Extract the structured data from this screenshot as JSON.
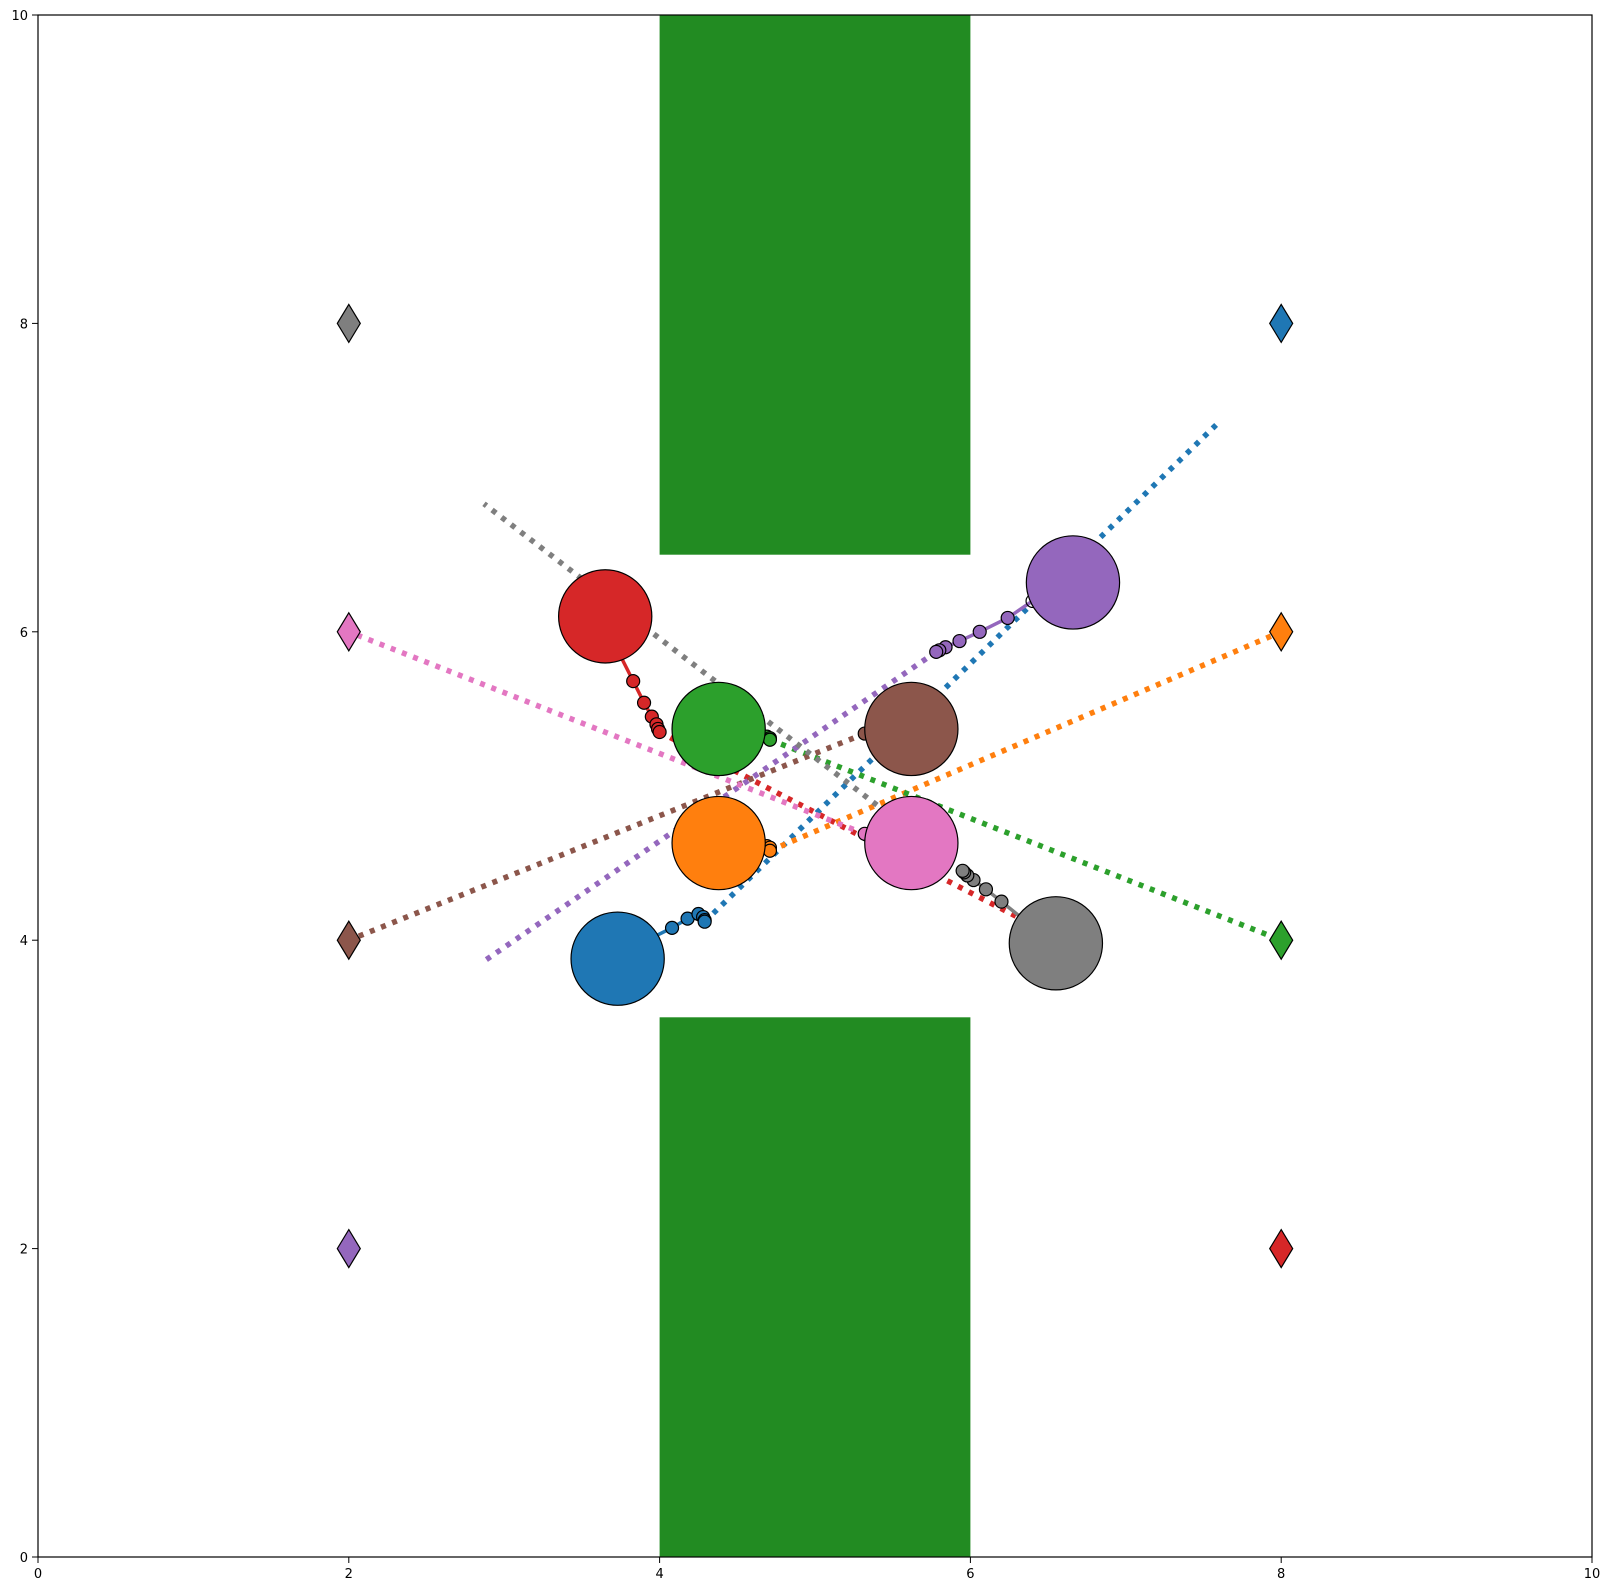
{
  "chart_data": {
    "type": "scatter",
    "title": "",
    "xlabel": "",
    "ylabel": "",
    "xlim": [
      0,
      10
    ],
    "ylim": [
      0,
      10
    ],
    "grid": false,
    "x_ticks": [
      0,
      2,
      4,
      6,
      8,
      10
    ],
    "y_ticks": [
      0,
      2,
      4,
      6,
      8,
      10
    ],
    "x_tick_labels": [
      "0",
      "2",
      "4",
      "6",
      "8",
      "10"
    ],
    "y_tick_labels": [
      "0",
      "2",
      "4",
      "6",
      "8",
      "10"
    ],
    "obstacles": [
      {
        "x0": 4.0,
        "x1": 6.0,
        "y0": 6.5,
        "y1": 10.0,
        "color": "#228b22"
      },
      {
        "x0": 4.0,
        "x1": 6.0,
        "y0": 0.0,
        "y1": 3.5,
        "color": "#228b22"
      }
    ],
    "agent_radius": 0.3,
    "agents": [
      {
        "color": "#1f77b4",
        "goal": [
          8,
          8
        ],
        "position": [
          3.73,
          3.88
        ],
        "history": [
          [
            3.92,
            4.0
          ],
          [
            4.08,
            4.08
          ],
          [
            4.18,
            4.14
          ],
          [
            4.25,
            4.17
          ],
          [
            4.28,
            4.15
          ],
          [
            4.29,
            4.13
          ],
          [
            4.29,
            4.12
          ]
        ],
        "plan": [
          [
            4.29,
            4.12
          ],
          [
            7.6,
            7.36
          ]
        ]
      },
      {
        "color": "#ff7f0e",
        "goal": [
          8,
          6
        ],
        "position": [
          4.38,
          4.63
        ],
        "history": [
          [
            4.54,
            4.63
          ],
          [
            4.64,
            4.63
          ],
          [
            4.69,
            4.61
          ],
          [
            4.71,
            4.6
          ],
          [
            4.71,
            4.58
          ]
        ],
        "plan": [
          [
            4.71,
            4.58
          ],
          [
            8.0,
            6.0
          ]
        ]
      },
      {
        "color": "#2ca02c",
        "goal": [
          8,
          4
        ],
        "position": [
          4.38,
          5.37
        ],
        "history": [
          [
            4.54,
            5.34
          ],
          [
            4.64,
            5.33
          ],
          [
            4.69,
            5.32
          ],
          [
            4.71,
            5.31
          ],
          [
            4.71,
            5.3
          ]
        ],
        "plan": [
          [
            4.71,
            5.3
          ],
          [
            8.0,
            4.0
          ]
        ]
      },
      {
        "color": "#d62728",
        "goal": [
          8,
          2
        ],
        "position": [
          3.65,
          6.1
        ],
        "history": [
          [
            3.74,
            5.86
          ],
          [
            3.83,
            5.68
          ],
          [
            3.9,
            5.54
          ],
          [
            3.95,
            5.45
          ],
          [
            3.98,
            5.4
          ],
          [
            3.99,
            5.37
          ],
          [
            4.0,
            5.35
          ]
        ],
        "plan": [
          [
            4.0,
            5.35
          ],
          [
            6.63,
            3.98
          ]
        ]
      },
      {
        "color": "#9467bd",
        "goal": [
          2,
          2
        ],
        "position": [
          6.66,
          6.32
        ],
        "history": [
          [
            6.4,
            6.2
          ],
          [
            6.24,
            6.09
          ],
          [
            6.06,
            6.0
          ],
          [
            5.93,
            5.94
          ],
          [
            5.84,
            5.9
          ],
          [
            5.8,
            5.88
          ],
          [
            5.78,
            5.87
          ]
        ],
        "plan": [
          [
            5.78,
            5.87
          ],
          [
            2.85,
            3.85
          ]
        ]
      },
      {
        "color": "#8c564b",
        "goal": [
          2,
          4
        ],
        "position": [
          5.62,
          5.37
        ],
        "history": [
          [
            5.48,
            5.35
          ],
          [
            5.39,
            5.34
          ],
          [
            5.34,
            5.34
          ],
          [
            5.32,
            5.34
          ]
        ],
        "plan": [
          [
            5.32,
            5.34
          ],
          [
            2.0,
            4.0
          ]
        ]
      },
      {
        "color": "#e377c2",
        "goal": [
          2,
          6
        ],
        "position": [
          5.62,
          4.63
        ],
        "history": [
          [
            5.48,
            4.66
          ],
          [
            5.39,
            4.67
          ],
          [
            5.34,
            4.68
          ],
          [
            5.32,
            4.69
          ]
        ],
        "plan": [
          [
            5.32,
            4.69
          ],
          [
            2.0,
            6.0
          ]
        ]
      },
      {
        "color": "#7f7f7f",
        "goal": [
          2,
          8
        ],
        "position": [
          6.55,
          3.98
        ],
        "history": [
          [
            6.36,
            4.12
          ],
          [
            6.2,
            4.25
          ],
          [
            6.1,
            4.33
          ],
          [
            6.02,
            4.39
          ],
          [
            5.98,
            4.42
          ],
          [
            5.96,
            4.44
          ],
          [
            5.95,
            4.45
          ]
        ],
        "plan": [
          [
            5.95,
            4.45
          ],
          [
            2.87,
            6.83
          ]
        ]
      }
    ]
  }
}
